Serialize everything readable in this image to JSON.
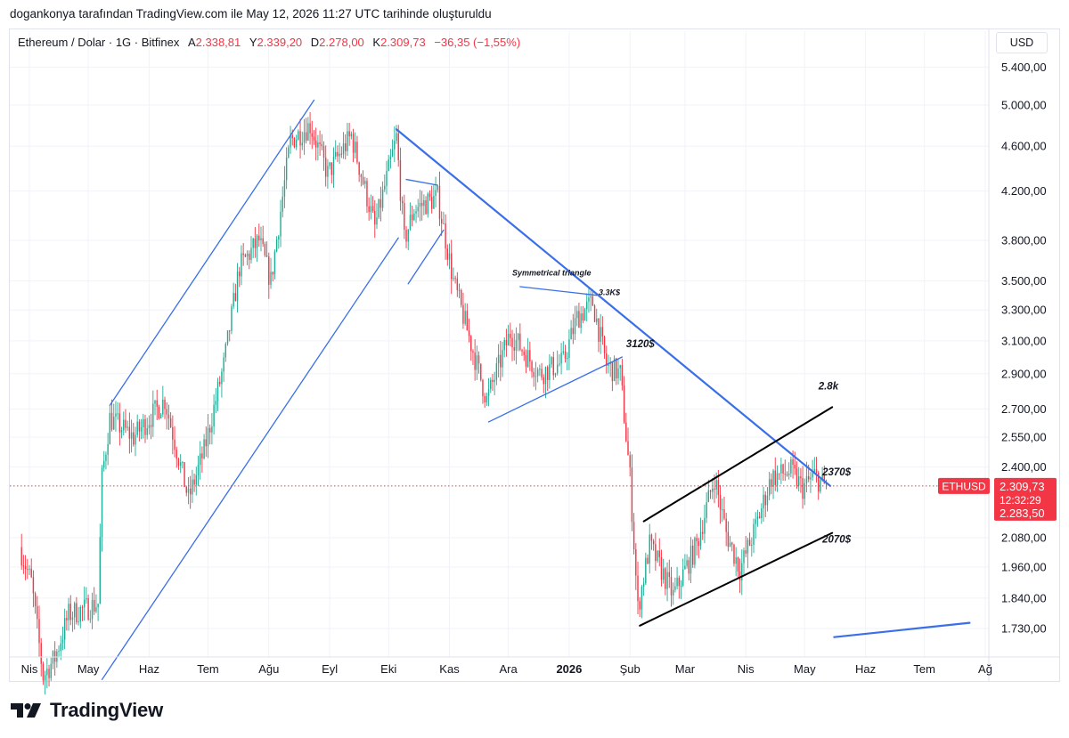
{
  "caption": "dogankonya tarafından TradingView.com ile May 12, 2026 11:27 UTC tarihinde oluşturuldu",
  "legend": {
    "symbol": "Ethereum / Dolar · 1G · Bitfinex",
    "open_label": "A",
    "open": "2.338,81",
    "high_label": "Y",
    "high": "2.339,20",
    "low_label": "D",
    "low": "2.278,00",
    "close_label": "K",
    "close": "2.309,73",
    "change": "−36,35 (−1,55%)"
  },
  "currency": "USD",
  "brand": "TradingView",
  "colors": {
    "up": "#22ab94",
    "down": "#f23645",
    "trendline": "#3a6fe8",
    "channel": "#000000",
    "price_tag": "#f23645",
    "grid": "#f0f3fa"
  },
  "chart_data": {
    "type": "candlestick",
    "symbol": "ETHUSD",
    "exchange": "Bitfinex",
    "interval": "1G",
    "y_scale": "log",
    "y_ticks": [
      {
        "value": 5400,
        "label": "5.400,00"
      },
      {
        "value": 5000,
        "label": "5.000,00"
      },
      {
        "value": 4600,
        "label": "4.600,00"
      },
      {
        "value": 4200,
        "label": "4.200,00"
      },
      {
        "value": 3800,
        "label": "3.800,00"
      },
      {
        "value": 3500,
        "label": "3.500,00"
      },
      {
        "value": 3300,
        "label": "3.300,00"
      },
      {
        "value": 3100,
        "label": "3.100,00"
      },
      {
        "value": 2900,
        "label": "2.900,00"
      },
      {
        "value": 2700,
        "label": "2.700,00"
      },
      {
        "value": 2550,
        "label": "2.550,00"
      },
      {
        "value": 2400,
        "label": "2.400,00"
      },
      {
        "value": 2080,
        "label": "2.080,00"
      },
      {
        "value": 1960,
        "label": "1.960,00"
      },
      {
        "value": 1840,
        "label": "1.840,00"
      },
      {
        "value": 1730,
        "label": "1.730,00"
      }
    ],
    "x_ticks": [
      {
        "date": "2025-04-01",
        "label": "Nis"
      },
      {
        "date": "2025-05-01",
        "label": "May"
      },
      {
        "date": "2025-06-01",
        "label": "Haz"
      },
      {
        "date": "2025-07-01",
        "label": "Tem"
      },
      {
        "date": "2025-08-01",
        "label": "Ağu"
      },
      {
        "date": "2025-09-01",
        "label": "Eyl"
      },
      {
        "date": "2025-10-01",
        "label": "Eki"
      },
      {
        "date": "2025-11-01",
        "label": "Kas"
      },
      {
        "date": "2025-12-01",
        "label": "Ara"
      },
      {
        "date": "2026-01-01",
        "label": "2026",
        "bold": true
      },
      {
        "date": "2026-02-01",
        "label": "Şub"
      },
      {
        "date": "2026-03-01",
        "label": "Mar"
      },
      {
        "date": "2026-04-01",
        "label": "Nis"
      },
      {
        "date": "2026-05-01",
        "label": "May"
      },
      {
        "date": "2026-06-01",
        "label": "Haz"
      },
      {
        "date": "2026-07-01",
        "label": "Tem"
      },
      {
        "date": "2026-08-01",
        "label": "Ağ"
      }
    ],
    "price_path": [
      [
        "2025-03-28",
        2040
      ],
      [
        "2025-04-03",
        1900
      ],
      [
        "2025-04-09",
        1570
      ],
      [
        "2025-04-15",
        1630
      ],
      [
        "2025-04-22",
        1780
      ],
      [
        "2025-04-30",
        1800
      ],
      [
        "2025-05-07",
        1820
      ],
      [
        "2025-05-09",
        2350
      ],
      [
        "2025-05-13",
        2650
      ],
      [
        "2025-05-25",
        2550
      ],
      [
        "2025-06-10",
        2750
      ],
      [
        "2025-06-22",
        2250
      ],
      [
        "2025-06-30",
        2480
      ],
      [
        "2025-07-10",
        2950
      ],
      [
        "2025-07-18",
        3600
      ],
      [
        "2025-07-28",
        3800
      ],
      [
        "2025-08-03",
        3500
      ],
      [
        "2025-08-13",
        4650
      ],
      [
        "2025-08-23",
        4800
      ],
      [
        "2025-09-01",
        4350
      ],
      [
        "2025-09-13",
        4700
      ],
      [
        "2025-09-25",
        3900
      ],
      [
        "2025-10-06",
        4680
      ],
      [
        "2025-10-10",
        3800
      ],
      [
        "2025-10-15",
        4050
      ],
      [
        "2025-10-27",
        4150
      ],
      [
        "2025-11-04",
        3500
      ],
      [
        "2025-11-21",
        2750
      ],
      [
        "2025-12-03",
        3150
      ],
      [
        "2025-12-18",
        2900
      ],
      [
        "2025-12-30",
        2970
      ],
      [
        "2026-01-06",
        3250
      ],
      [
        "2026-01-14",
        3350
      ],
      [
        "2026-01-21",
        2950
      ],
      [
        "2026-01-28",
        2900
      ],
      [
        "2026-02-02",
        2350
      ],
      [
        "2026-02-06",
        1800
      ],
      [
        "2026-02-12",
        2050
      ],
      [
        "2026-02-24",
        1850
      ],
      [
        "2026-03-08",
        2050
      ],
      [
        "2026-03-17",
        2350
      ],
      [
        "2026-03-23",
        2100
      ],
      [
        "2026-03-30",
        1950
      ],
      [
        "2026-04-06",
        2100
      ],
      [
        "2026-04-15",
        2350
      ],
      [
        "2026-04-25",
        2380
      ],
      [
        "2026-05-01",
        2300
      ],
      [
        "2026-05-07",
        2360
      ],
      [
        "2026-05-12",
        2310
      ]
    ],
    "drawings": [
      {
        "name": "rising-channel-upper",
        "color": "blue",
        "from": [
          "2025-05-12",
          2720
        ],
        "to": [
          "2025-08-24",
          5050
        ]
      },
      {
        "name": "rising-channel-lower",
        "color": "blue",
        "from": [
          "2025-05-08",
          1560
        ],
        "to": [
          "2025-10-06",
          3820
        ]
      },
      {
        "name": "descending-resistance",
        "color": "blue",
        "from": [
          "2025-10-05",
          4760
        ],
        "to": [
          "2026-05-14",
          2310
        ]
      },
      {
        "name": "flag-top",
        "color": "blue",
        "from": [
          "2025-10-10",
          4300
        ],
        "to": [
          "2025-10-26",
          4250
        ]
      },
      {
        "name": "flag-bottom",
        "color": "blue",
        "from": [
          "2025-10-11",
          3480
        ],
        "to": [
          "2025-10-29",
          3880
        ]
      },
      {
        "name": "triangle-top",
        "color": "blue",
        "from": [
          "2025-12-07",
          3460
        ],
        "to": [
          "2026-01-15",
          3400
        ]
      },
      {
        "name": "triangle-bottom",
        "color": "blue",
        "from": [
          "2025-11-21",
          2630
        ],
        "to": [
          "2026-01-28",
          3000
        ]
      },
      {
        "name": "rising-channel-2-upper",
        "color": "black",
        "from": [
          "2026-02-08",
          2150
        ],
        "to": [
          "2026-05-15",
          2710
        ]
      },
      {
        "name": "rising-channel-2-lower",
        "color": "black",
        "from": [
          "2026-02-06",
          1740
        ],
        "to": [
          "2026-05-15",
          2100
        ]
      },
      {
        "name": "projection-line",
        "color": "blue",
        "from": [
          "2026-05-16",
          1700
        ],
        "to": [
          "2026-07-24",
          1750
        ]
      }
    ],
    "annotations": [
      {
        "text": "Symmetrical triangle",
        "date": "2025-12-03",
        "price": 3540
      },
      {
        "text": "3.3K$",
        "date": "2026-01-16",
        "price": 3400
      },
      {
        "text": "3120$",
        "date": "2026-01-30",
        "price": 3060
      },
      {
        "text": "2.8k",
        "date": "2026-05-08",
        "price": 2810
      },
      {
        "text": "2370$",
        "date": "2026-05-10",
        "price": 2360
      },
      {
        "text": "2070$",
        "date": "2026-05-10",
        "price": 2060
      }
    ],
    "last_price": {
      "symbol_tag": "ETHUSD",
      "value": 2309.73,
      "label": "2.309,73",
      "countdown": "12:32:29",
      "secondary_label": "2.283,50"
    }
  }
}
